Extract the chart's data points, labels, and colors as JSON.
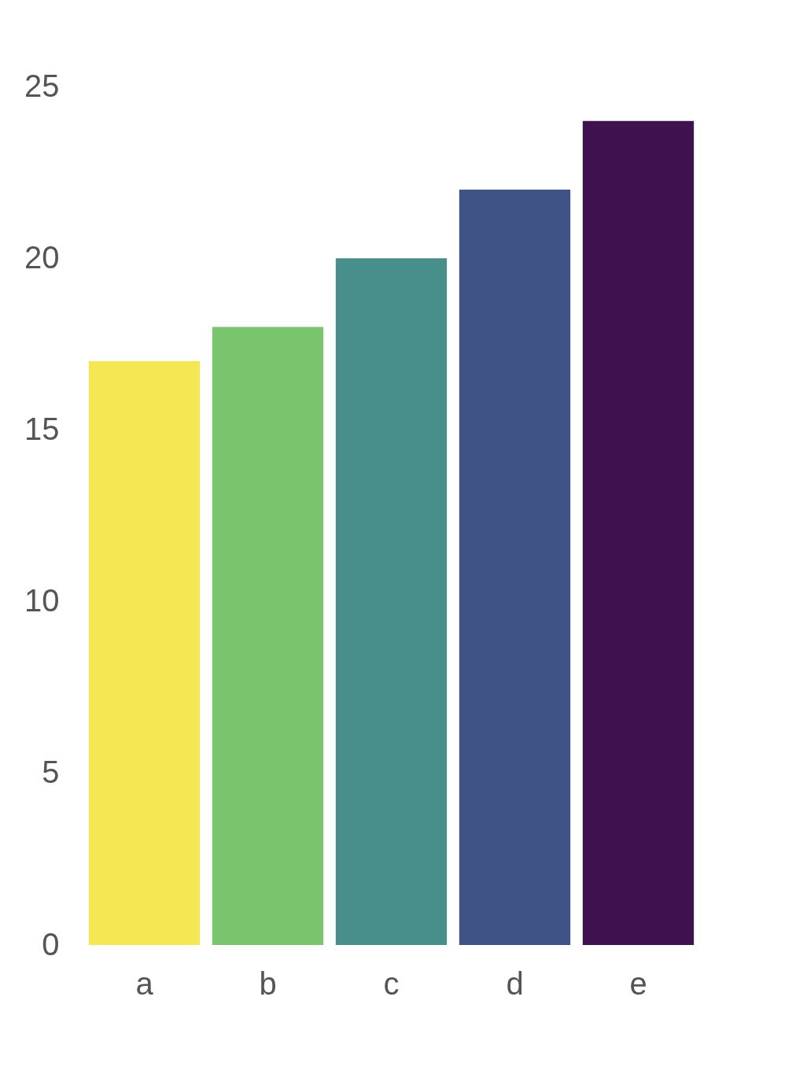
{
  "chart_data": {
    "type": "bar",
    "categories": [
      "a",
      "b",
      "c",
      "d",
      "e"
    ],
    "values": [
      17,
      18,
      20,
      22,
      24
    ],
    "colors": [
      "#f5e654",
      "#7ac46e",
      "#488e8a",
      "#405386",
      "#3f114f"
    ],
    "ylim": [
      0,
      25
    ],
    "yticks": [
      0,
      5,
      10,
      15,
      20,
      25
    ],
    "grid": false,
    "legend": false
  }
}
